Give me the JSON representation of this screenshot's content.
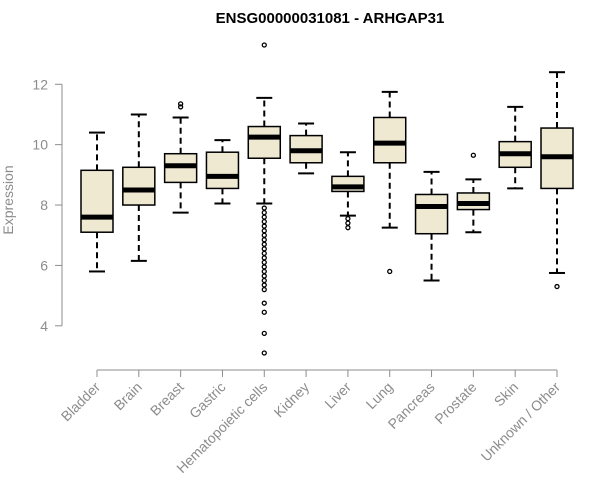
{
  "chart_data": {
    "type": "boxplot",
    "title": "ENSG00000031081 - ARHGAP31",
    "xlabel": "",
    "ylabel": "Expression",
    "ylim": [
      3.0,
      13.4
    ],
    "yticks": [
      4,
      6,
      8,
      10,
      12
    ],
    "colors": {
      "box_fill": "#efe9d2",
      "stroke": "#000000",
      "axis": "#8c8c8c"
    },
    "categories": [
      "Bladder",
      "Brain",
      "Breast",
      "Gastric",
      "Hematopoietic cells",
      "Kidney",
      "Liver",
      "Lung",
      "Pancreas",
      "Prostate",
      "Skin",
      "Unknown / Other"
    ],
    "boxes": [
      {
        "name": "Bladder",
        "whisker_low": 5.8,
        "q1": 7.1,
        "median": 7.6,
        "q3": 9.15,
        "whisker_high": 10.4,
        "outliers": []
      },
      {
        "name": "Brain",
        "whisker_low": 6.15,
        "q1": 8.0,
        "median": 8.5,
        "q3": 9.25,
        "whisker_high": 11.0,
        "outliers": []
      },
      {
        "name": "Breast",
        "whisker_low": 7.75,
        "q1": 8.75,
        "median": 9.3,
        "q3": 9.7,
        "whisker_high": 10.9,
        "outliers": [
          11.25,
          11.35
        ]
      },
      {
        "name": "Gastric",
        "whisker_low": 8.05,
        "q1": 8.55,
        "median": 8.95,
        "q3": 9.75,
        "whisker_high": 10.15,
        "outliers": []
      },
      {
        "name": "Hematopoietic cells",
        "whisker_low": 8.05,
        "q1": 9.55,
        "median": 10.25,
        "q3": 10.6,
        "whisker_high": 11.55,
        "outliers": [
          13.3,
          7.9,
          7.75,
          7.6,
          7.45,
          7.3,
          7.15,
          7.0,
          6.85,
          6.7,
          6.55,
          6.4,
          6.25,
          6.1,
          5.95,
          5.8,
          5.65,
          5.5,
          5.35,
          5.2,
          4.75,
          4.45,
          3.75,
          3.1
        ]
      },
      {
        "name": "Kidney",
        "whisker_low": 9.05,
        "q1": 9.4,
        "median": 9.8,
        "q3": 10.3,
        "whisker_high": 10.7,
        "outliers": []
      },
      {
        "name": "Liver",
        "whisker_low": 7.65,
        "q1": 8.45,
        "median": 8.6,
        "q3": 8.95,
        "whisker_high": 9.75,
        "outliers": [
          7.55,
          7.4,
          7.25
        ]
      },
      {
        "name": "Lung",
        "whisker_low": 7.25,
        "q1": 9.4,
        "median": 10.05,
        "q3": 10.9,
        "whisker_high": 11.75,
        "outliers": [
          5.8
        ]
      },
      {
        "name": "Pancreas",
        "whisker_low": 5.5,
        "q1": 7.05,
        "median": 7.95,
        "q3": 8.35,
        "whisker_high": 9.1,
        "outliers": []
      },
      {
        "name": "Prostate",
        "whisker_low": 7.1,
        "q1": 7.85,
        "median": 8.05,
        "q3": 8.4,
        "whisker_high": 8.85,
        "outliers": [
          9.65
        ]
      },
      {
        "name": "Skin",
        "whisker_low": 8.55,
        "q1": 9.25,
        "median": 9.7,
        "q3": 10.1,
        "whisker_high": 11.25,
        "outliers": []
      },
      {
        "name": "Unknown / Other",
        "whisker_low": 5.75,
        "q1": 8.55,
        "median": 9.6,
        "q3": 10.55,
        "whisker_high": 12.4,
        "outliers": [
          5.3
        ]
      }
    ]
  }
}
